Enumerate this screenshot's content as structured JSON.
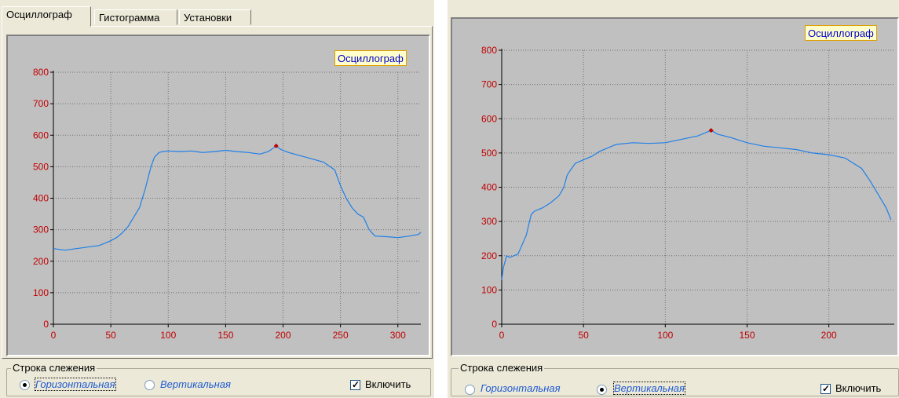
{
  "left": {
    "tabs": [
      {
        "label": "Осциллограф",
        "active": true
      },
      {
        "label": "Гистограмма",
        "active": false
      },
      {
        "label": "Установки",
        "active": false
      }
    ],
    "legend": "Осциллограф",
    "tracking": {
      "title": "Строка слежения",
      "horizontal_label": "Горизонтальная",
      "vertical_label": "Вертикальная",
      "selected": "horizontal",
      "enable_label": "Включить",
      "enabled": true
    }
  },
  "right": {
    "legend": "Осциллограф",
    "tracking": {
      "title": "Строка слежения",
      "horizontal_label": "Горизонтальная",
      "vertical_label": "Вертикальная",
      "selected": "vertical",
      "enable_label": "Включить",
      "enabled": true
    }
  },
  "colors": {
    "line": "#1e7fe8",
    "marker": "#c00000",
    "tick_labels": "#c00000",
    "grid": "#707070"
  },
  "chart_data": [
    {
      "type": "line",
      "title": "Осциллограф",
      "xlim": [
        0,
        320
      ],
      "ylim": [
        0,
        800
      ],
      "xticks": [
        0,
        50,
        100,
        150,
        200,
        250,
        300
      ],
      "yticks": [
        0,
        100,
        200,
        300,
        400,
        500,
        600,
        700,
        800
      ],
      "grid": true,
      "series": [
        {
          "x": [
            0,
            10,
            20,
            30,
            40,
            50,
            55,
            60,
            65,
            70,
            75,
            80,
            85,
            88,
            92,
            95,
            100,
            110,
            120,
            130,
            140,
            150,
            160,
            170,
            180,
            187,
            190,
            194,
            198,
            205,
            215,
            225,
            235,
            245,
            250,
            255,
            260,
            265,
            270,
            275,
            280,
            290,
            300,
            310,
            318,
            320
          ],
          "y": [
            240,
            235,
            240,
            245,
            250,
            265,
            275,
            290,
            310,
            340,
            370,
            430,
            500,
            530,
            545,
            548,
            550,
            548,
            550,
            545,
            548,
            552,
            548,
            545,
            540,
            548,
            555,
            566,
            555,
            545,
            535,
            525,
            515,
            490,
            440,
            400,
            370,
            350,
            340,
            300,
            280,
            278,
            275,
            280,
            285,
            292
          ]
        }
      ],
      "marker": {
        "x": 194,
        "y": 566
      }
    },
    {
      "type": "line",
      "title": "Осциллограф",
      "xlim": [
        0,
        240
      ],
      "ylim": [
        0,
        800
      ],
      "xticks": [
        0,
        50,
        100,
        150,
        200
      ],
      "yticks": [
        0,
        100,
        200,
        300,
        400,
        500,
        600,
        700,
        800
      ],
      "grid": true,
      "series": [
        {
          "x": [
            0,
            1,
            3,
            5,
            10,
            15,
            18,
            20,
            25,
            30,
            35,
            38,
            40,
            42,
            45,
            50,
            55,
            60,
            65,
            70,
            80,
            90,
            100,
            110,
            120,
            125,
            128,
            132,
            140,
            150,
            160,
            170,
            180,
            190,
            200,
            205,
            210,
            215,
            220,
            225,
            230,
            235,
            238
          ],
          "y": [
            130,
            165,
            200,
            195,
            205,
            260,
            320,
            330,
            340,
            355,
            375,
            400,
            435,
            450,
            470,
            480,
            490,
            505,
            515,
            525,
            530,
            528,
            530,
            540,
            550,
            560,
            566,
            555,
            545,
            530,
            520,
            515,
            510,
            500,
            495,
            490,
            485,
            470,
            455,
            420,
            380,
            340,
            305
          ]
        }
      ],
      "marker": {
        "x": 128,
        "y": 566
      }
    }
  ]
}
